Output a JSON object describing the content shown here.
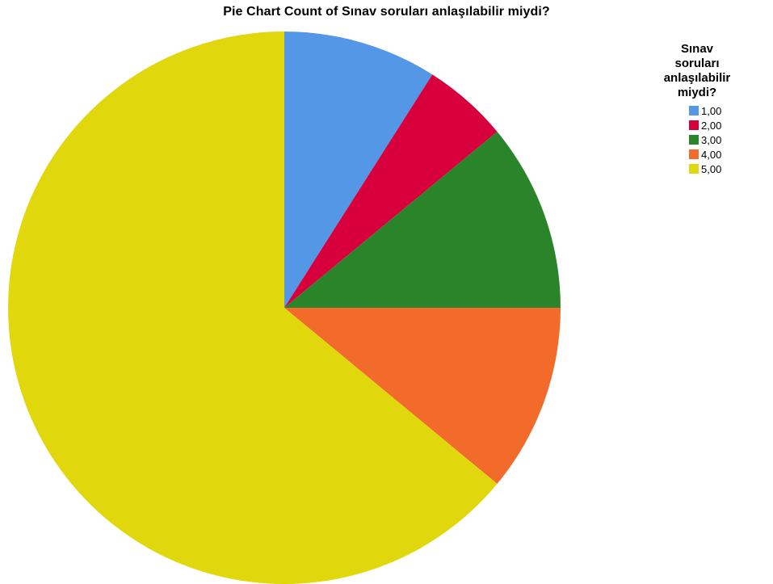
{
  "chart_data": {
    "type": "pie",
    "title": "Pie Chart Count of Sınav soruları anlaşılabilir miydi?",
    "legend_title": "Sınav soruları anlaşılabilir miydi?",
    "legend_title_lines": [
      "Sınav",
      "soruları",
      "anlaşılabilir",
      "miydi?"
    ],
    "legend_placement": "right",
    "categories": [
      "1,00",
      "2,00",
      "3,00",
      "4,00",
      "5,00"
    ],
    "values": [
      9,
      5,
      11,
      11,
      64
    ],
    "colors": [
      "#5497e6",
      "#d8003c",
      "#2a852a",
      "#f26b2a",
      "#e0d70d"
    ]
  }
}
